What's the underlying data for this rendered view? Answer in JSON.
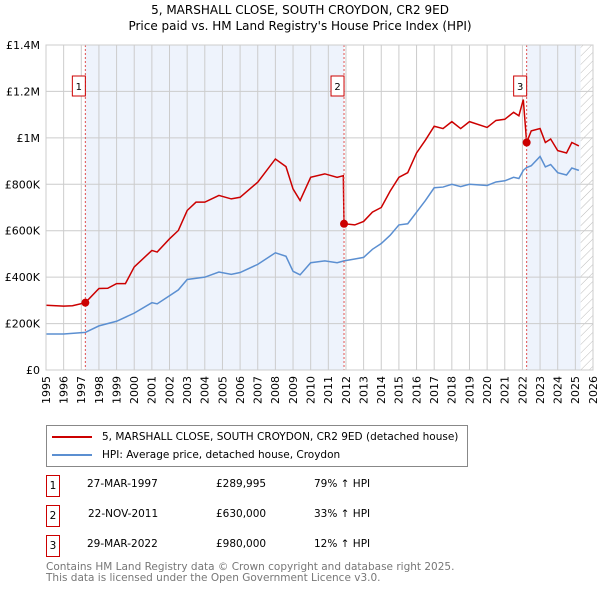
{
  "title": "5, MARSHALL CLOSE, SOUTH CROYDON, CR2 9ED",
  "subtitle": "Price paid vs. HM Land Registry's House Price Index (HPI)",
  "colors": {
    "property": "#cc0000",
    "hpi": "#5b8fd1",
    "shade": "#eef3fc",
    "grid": "#cccccc"
  },
  "chart_data": {
    "type": "line",
    "title": "5, MARSHALL CLOSE, SOUTH CROYDON, CR2 9ED",
    "xlim": [
      1995,
      2026
    ],
    "ylim": [
      0,
      1400000
    ],
    "x_ticks": [
      "1995",
      "1996",
      "1997",
      "1998",
      "1999",
      "2000",
      "2001",
      "2002",
      "2003",
      "2004",
      "2005",
      "2006",
      "2007",
      "2008",
      "2009",
      "2010",
      "2011",
      "2012",
      "2013",
      "2014",
      "2015",
      "2016",
      "2017",
      "2018",
      "2019",
      "2020",
      "2021",
      "2022",
      "2023",
      "2024",
      "2025",
      "2026"
    ],
    "y_ticks": [
      {
        "value": 0,
        "label": "£0"
      },
      {
        "value": 200000,
        "label": "£200K"
      },
      {
        "value": 400000,
        "label": "£400K"
      },
      {
        "value": 600000,
        "label": "£600K"
      },
      {
        "value": 800000,
        "label": "£800K"
      },
      {
        "value": 1000000,
        "label": "£1M"
      },
      {
        "value": 1200000,
        "label": "£1.2M"
      },
      {
        "value": 1400000,
        "label": "£1.4M"
      }
    ],
    "grid": true,
    "shaded_ranges": [
      [
        1997.23,
        2011.89
      ],
      [
        2022.24,
        2025.3
      ]
    ],
    "forecast_hatch_from": 2025.3,
    "series": [
      {
        "name": "5, MARSHALL CLOSE, SOUTH CROYDON, CR2 9ED (detached house)",
        "color": "#cc0000",
        "points": [
          [
            1995,
            279000
          ],
          [
            1996,
            275000
          ],
          [
            1996.5,
            277000
          ],
          [
            1997.23,
            289995
          ],
          [
            1998,
            351000
          ],
          [
            1998.5,
            352000
          ],
          [
            1999,
            372000
          ],
          [
            1999.5,
            372000
          ],
          [
            2000,
            444000
          ],
          [
            2001,
            515000
          ],
          [
            2001.3,
            508000
          ],
          [
            2002,
            565000
          ],
          [
            2002.5,
            601000
          ],
          [
            2003,
            687000
          ],
          [
            2003.5,
            723000
          ],
          [
            2004,
            723000
          ],
          [
            2004.8,
            752000
          ],
          [
            2005.5,
            737000
          ],
          [
            2006,
            744000
          ],
          [
            2007,
            809000
          ],
          [
            2008,
            909000
          ],
          [
            2008.6,
            876000
          ],
          [
            2009,
            780000
          ],
          [
            2009.4,
            730000
          ],
          [
            2010,
            830000
          ],
          [
            2010.8,
            845000
          ],
          [
            2011.5,
            830000
          ],
          [
            2011.85,
            837000
          ],
          [
            2011.89,
            630000
          ],
          [
            2012.5,
            625000
          ],
          [
            2013,
            640000
          ],
          [
            2013.5,
            680000
          ],
          [
            2014,
            700000
          ],
          [
            2014.5,
            770000
          ],
          [
            2015,
            830000
          ],
          [
            2015.5,
            850000
          ],
          [
            2016,
            935000
          ],
          [
            2016.5,
            990000
          ],
          [
            2017,
            1050000
          ],
          [
            2017.5,
            1040000
          ],
          [
            2018,
            1070000
          ],
          [
            2018.5,
            1040000
          ],
          [
            2019,
            1070000
          ],
          [
            2020,
            1045000
          ],
          [
            2020.5,
            1075000
          ],
          [
            2021,
            1080000
          ],
          [
            2021.5,
            1110000
          ],
          [
            2021.8,
            1095000
          ],
          [
            2022.05,
            1165000
          ],
          [
            2022.24,
            980000
          ],
          [
            2022.5,
            1030000
          ],
          [
            2023,
            1040000
          ],
          [
            2023.3,
            980000
          ],
          [
            2023.6,
            995000
          ],
          [
            2024,
            945000
          ],
          [
            2024.5,
            935000
          ],
          [
            2024.8,
            980000
          ],
          [
            2025.2,
            965000
          ]
        ]
      },
      {
        "name": "HPI: Average price, detached house, Croydon",
        "color": "#5b8fd1",
        "points": [
          [
            1995,
            155000
          ],
          [
            1996,
            155000
          ],
          [
            1997.23,
            162000
          ],
          [
            1998,
            190000
          ],
          [
            1999,
            210000
          ],
          [
            2000,
            245000
          ],
          [
            2001,
            290000
          ],
          [
            2001.3,
            285000
          ],
          [
            2002,
            320000
          ],
          [
            2002.5,
            345000
          ],
          [
            2003,
            390000
          ],
          [
            2004,
            400000
          ],
          [
            2004.8,
            422000
          ],
          [
            2005.5,
            412000
          ],
          [
            2006,
            420000
          ],
          [
            2007,
            455000
          ],
          [
            2008,
            505000
          ],
          [
            2008.6,
            490000
          ],
          [
            2009,
            425000
          ],
          [
            2009.4,
            410000
          ],
          [
            2010,
            462000
          ],
          [
            2010.8,
            470000
          ],
          [
            2011.5,
            462000
          ],
          [
            2011.89,
            470000
          ],
          [
            2012.5,
            478000
          ],
          [
            2013,
            485000
          ],
          [
            2013.5,
            520000
          ],
          [
            2014,
            545000
          ],
          [
            2014.5,
            580000
          ],
          [
            2015,
            625000
          ],
          [
            2015.5,
            630000
          ],
          [
            2016,
            680000
          ],
          [
            2016.5,
            730000
          ],
          [
            2017,
            785000
          ],
          [
            2017.5,
            788000
          ],
          [
            2018,
            800000
          ],
          [
            2018.5,
            790000
          ],
          [
            2019,
            800000
          ],
          [
            2020,
            795000
          ],
          [
            2020.5,
            810000
          ],
          [
            2021,
            815000
          ],
          [
            2021.5,
            830000
          ],
          [
            2021.8,
            825000
          ],
          [
            2022.05,
            860000
          ],
          [
            2022.24,
            872000
          ],
          [
            2022.5,
            880000
          ],
          [
            2023,
            920000
          ],
          [
            2023.3,
            875000
          ],
          [
            2023.6,
            885000
          ],
          [
            2024,
            850000
          ],
          [
            2024.5,
            840000
          ],
          [
            2024.8,
            870000
          ],
          [
            2025.2,
            860000
          ]
        ]
      }
    ],
    "sales": [
      {
        "label": "1",
        "x": 1997.23,
        "y": 289995
      },
      {
        "label": "2",
        "x": 2011.89,
        "y": 630000
      },
      {
        "label": "3",
        "x": 2022.24,
        "y": 980000
      }
    ]
  },
  "legend": [
    {
      "label": "5, MARSHALL CLOSE, SOUTH CROYDON, CR2 9ED (detached house)",
      "color": "#cc0000"
    },
    {
      "label": "HPI: Average price, detached house, Croydon",
      "color": "#5b8fd1"
    }
  ],
  "transactions": [
    {
      "num": "1",
      "date": "27-MAR-1997",
      "price": "£289,995",
      "hpi": "79% ↑ HPI"
    },
    {
      "num": "2",
      "date": "22-NOV-2011",
      "price": "£630,000",
      "hpi": "33% ↑ HPI"
    },
    {
      "num": "3",
      "date": "29-MAR-2022",
      "price": "£980,000",
      "hpi": "12% ↑ HPI"
    }
  ],
  "footer": [
    "Contains HM Land Registry data © Crown copyright and database right 2025.",
    "This data is licensed under the Open Government Licence v3.0."
  ]
}
